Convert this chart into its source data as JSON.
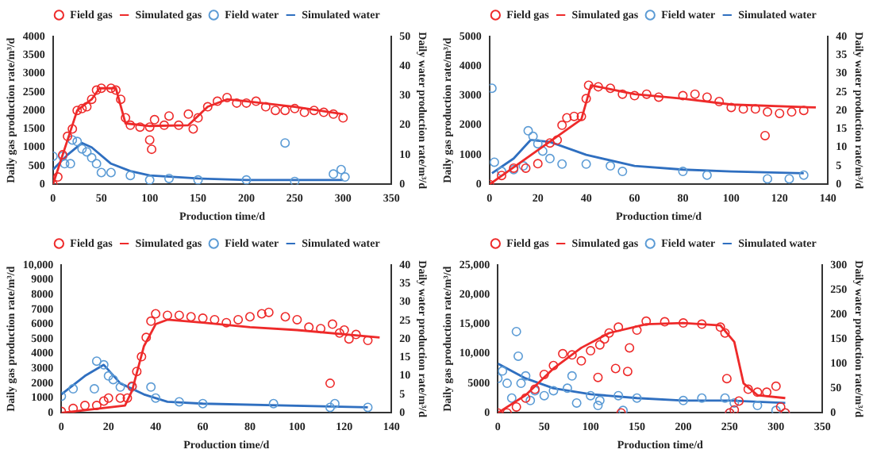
{
  "chart_data": [
    {
      "type": "scatter",
      "xlabel": "Production time/d",
      "ylabel": "Daily gas production rate/m³/d",
      "y2label": "Daily water production rate/m³/d",
      "xlim": [
        0,
        350
      ],
      "xticks": [
        0,
        50,
        100,
        150,
        200,
        250,
        300,
        350
      ],
      "ylim": [
        0,
        4000
      ],
      "yticks": [
        0,
        500,
        1000,
        1500,
        2000,
        2500,
        3000,
        3500,
        4000
      ],
      "y2lim": [
        0,
        50
      ],
      "y2ticks": [
        0,
        10,
        20,
        30,
        40,
        50
      ],
      "grid": false,
      "legend": "top",
      "series": [
        {
          "name": "Field gas",
          "type": "scatter",
          "marker": "circle",
          "color": "#ee2a2a",
          "x": [
            0,
            5,
            10,
            15,
            20,
            25,
            30,
            35,
            40,
            45,
            50,
            60,
            65,
            70,
            75,
            80,
            90,
            100,
            100,
            102,
            105,
            115,
            120,
            130,
            140,
            145,
            150,
            160,
            170,
            180,
            190,
            200,
            210,
            220,
            230,
            240,
            250,
            260,
            270,
            280,
            290,
            300
          ],
          "values": [
            0,
            200,
            800,
            1300,
            1500,
            2000,
            2050,
            2100,
            2300,
            2550,
            2600,
            2600,
            2550,
            2300,
            1800,
            1600,
            1550,
            1550,
            1200,
            950,
            1750,
            1600,
            1850,
            1600,
            1900,
            1500,
            1800,
            2100,
            2250,
            2350,
            2200,
            2200,
            2250,
            2100,
            2000,
            2000,
            2050,
            1950,
            2000,
            1950,
            1900,
            1800
          ]
        },
        {
          "name": "Simulated gas",
          "type": "line",
          "marker": "none",
          "color": "#ee2a2a",
          "x": [
            0,
            20,
            25,
            40,
            48,
            65,
            75,
            100,
            140,
            160,
            180,
            200,
            250,
            300
          ],
          "values": [
            0,
            1600,
            2000,
            2300,
            2600,
            2600,
            1650,
            1580,
            1600,
            2100,
            2300,
            2250,
            2100,
            1900
          ]
        },
        {
          "name": "Field water",
          "type": "scatter",
          "marker": "circle",
          "axis": "y2",
          "color": "#5b9bd5",
          "x": [
            0,
            10,
            12,
            18,
            20,
            25,
            30,
            35,
            40,
            45,
            50,
            60,
            80,
            100,
            120,
            150,
            200,
            240,
            250,
            290,
            298,
            302
          ],
          "values": [
            9.5,
            9.5,
            7,
            7,
            15,
            14.5,
            12,
            11,
            9,
            7,
            4,
            4,
            3,
            1.5,
            2,
            1.5,
            1.5,
            14,
            1,
            3.5,
            5,
            2.5
          ]
        },
        {
          "name": "Simulated water",
          "type": "line",
          "marker": "none",
          "axis": "y2",
          "color": "#2f6fc0",
          "x": [
            0,
            15,
            30,
            40,
            60,
            80,
            100,
            150,
            200,
            300
          ],
          "values": [
            5,
            10,
            14,
            12.5,
            7,
            4.5,
            3,
            2,
            1.5,
            1.5
          ]
        }
      ]
    },
    {
      "type": "scatter",
      "xlabel": "Production time/d",
      "ylabel": "Daily gas production rate/m³/d",
      "y2label": "Daily water production rate/m³/d",
      "xlim": [
        0,
        140
      ],
      "xticks": [
        0,
        20,
        40,
        60,
        80,
        100,
        120,
        140
      ],
      "ylim": [
        0,
        5000
      ],
      "yticks": [
        0,
        1000,
        2000,
        3000,
        4000,
        5000
      ],
      "y2lim": [
        0,
        40
      ],
      "y2ticks": [
        0,
        5,
        10,
        15,
        20,
        25,
        30,
        35,
        40
      ],
      "grid": false,
      "legend": "top",
      "series": [
        {
          "name": "Field gas",
          "type": "scatter",
          "marker": "circle",
          "color": "#ee2a2a",
          "x": [
            0,
            5,
            10,
            15,
            20,
            25,
            28,
            30,
            32,
            35,
            38,
            40,
            41,
            45,
            50,
            55,
            60,
            65,
            70,
            80,
            85,
            90,
            95,
            100,
            105,
            110,
            114,
            115,
            120,
            125,
            130
          ],
          "values": [
            0,
            300,
            550,
            550,
            700,
            1400,
            1500,
            2000,
            2250,
            2300,
            2300,
            2900,
            3350,
            3300,
            3250,
            3050,
            3000,
            3050,
            2950,
            3000,
            3050,
            2950,
            2800,
            2600,
            2550,
            2550,
            1650,
            2450,
            2400,
            2450,
            2500
          ]
        },
        {
          "name": "Simulated gas",
          "type": "line",
          "marker": "none",
          "color": "#ee2a2a",
          "x": [
            0,
            38,
            42,
            60,
            80,
            100,
            135
          ],
          "values": [
            0,
            2200,
            3350,
            3050,
            2900,
            2700,
            2600
          ]
        },
        {
          "name": "Field water",
          "type": "scatter",
          "marker": "circle",
          "axis": "y2",
          "color": "#5b9bd5",
          "x": [
            1,
            2,
            5,
            10,
            14,
            16,
            18,
            20,
            22,
            25,
            30,
            40,
            50,
            55,
            80,
            90,
            115,
            124,
            130
          ],
          "values": [
            26,
            6,
            3.5,
            4,
            5,
            14.5,
            13,
            11,
            9,
            7,
            5.5,
            5.5,
            5,
            3.5,
            3.5,
            2.5,
            1.5,
            1.5,
            2.5
          ]
        },
        {
          "name": "Simulated water",
          "type": "line",
          "marker": "none",
          "axis": "y2",
          "color": "#2f6fc0",
          "x": [
            1,
            10,
            17,
            25,
            40,
            60,
            80,
            100,
            130
          ],
          "values": [
            3,
            7,
            12,
            11.5,
            8,
            5,
            4,
            3.5,
            3
          ]
        }
      ]
    },
    {
      "type": "scatter",
      "xlabel": "Production time/d",
      "ylabel": "Daily gas production rate/m³/d",
      "y2label": "Daily water production rate/m³/d",
      "xlim": [
        0,
        140
      ],
      "xticks": [
        0,
        20,
        40,
        60,
        80,
        100,
        120,
        140
      ],
      "ylim": [
        0,
        10000
      ],
      "yticks": [
        0,
        1000,
        2000,
        3000,
        4000,
        5000,
        6000,
        7000,
        8000,
        9000,
        {
          "value": 10000,
          "label": "10,000"
        }
      ],
      "y2lim": [
        0,
        40
      ],
      "y2ticks": [
        0,
        5,
        10,
        15,
        20,
        25,
        30,
        35,
        40
      ],
      "grid": false,
      "legend": "top",
      "series": [
        {
          "name": "Field gas",
          "type": "scatter",
          "marker": "circle",
          "color": "#ee2a2a",
          "x": [
            0,
            5,
            10,
            15,
            18,
            20,
            25,
            28,
            30,
            32,
            34,
            36,
            38,
            40,
            45,
            50,
            55,
            60,
            65,
            70,
            75,
            80,
            85,
            88,
            95,
            100,
            105,
            110,
            114,
            115,
            118,
            120,
            122,
            125,
            130
          ],
          "values": [
            100,
            300,
            500,
            500,
            800,
            1000,
            1000,
            1000,
            1800,
            2800,
            3800,
            5100,
            6200,
            6700,
            6600,
            6600,
            6500,
            6400,
            6300,
            6100,
            6300,
            6500,
            6700,
            6800,
            6500,
            6300,
            5800,
            5700,
            2000,
            6000,
            5400,
            5600,
            5000,
            5300,
            4900
          ]
        },
        {
          "name": "Simulated gas",
          "type": "line",
          "marker": "none",
          "color": "#ee2a2a",
          "x": [
            0,
            27,
            30,
            35,
            40,
            45,
            60,
            80,
            100,
            135
          ],
          "values": [
            0,
            500,
            1500,
            4500,
            6000,
            6300,
            6100,
            5800,
            5600,
            5100
          ]
        },
        {
          "name": "Field water",
          "type": "scatter",
          "marker": "circle",
          "axis": "y2",
          "color": "#5b9bd5",
          "x": [
            0,
            5,
            14,
            15,
            18,
            20,
            22,
            25,
            30,
            38,
            40,
            50,
            60,
            90,
            114,
            116,
            130
          ],
          "values": [
            4.5,
            6.5,
            6.5,
            14,
            13,
            10,
            9,
            7,
            7,
            7,
            4,
            3,
            2.5,
            2.5,
            1.5,
            2.5,
            1.5
          ]
        },
        {
          "name": "Simulated water",
          "type": "line",
          "marker": "none",
          "axis": "y2",
          "color": "#2f6fc0",
          "x": [
            0,
            10,
            18,
            25,
            35,
            45,
            60,
            130
          ],
          "values": [
            5,
            10,
            13,
            8,
            5,
            3,
            2.5,
            1.5
          ]
        }
      ]
    },
    {
      "type": "scatter",
      "xlabel": "Production time/d",
      "ylabel": "Daily gas production rate/m³/d",
      "y2label": "Daily water production rate/m³/d",
      "xlim": [
        0,
        350
      ],
      "xticks": [
        0,
        50,
        100,
        150,
        200,
        250,
        300,
        350
      ],
      "ylim": [
        0,
        25000
      ],
      "yticks": [
        0,
        5000,
        {
          "value": 10000,
          "label": "10,000"
        },
        {
          "value": 15000,
          "label": "15,000"
        },
        {
          "value": 20000,
          "label": "20,000"
        },
        {
          "value": 25000,
          "label": "25,000"
        }
      ],
      "y2lim": [
        0,
        300
      ],
      "y2ticks": [
        0,
        50,
        100,
        150,
        200,
        250,
        300
      ],
      "grid": false,
      "legend": "top",
      "series": [
        {
          "name": "Field gas",
          "type": "scatter",
          "marker": "circle",
          "color": "#ee2a2a",
          "x": [
            0,
            10,
            20,
            30,
            40,
            50,
            60,
            70,
            80,
            90,
            100,
            108,
            110,
            115,
            120,
            127,
            130,
            133,
            140,
            142,
            150,
            160,
            180,
            200,
            220,
            240,
            245,
            247,
            250,
            255,
            260,
            270,
            280,
            290,
            300,
            305,
            310
          ],
          "values": [
            0,
            0,
            1000,
            2500,
            4000,
            6500,
            8000,
            10000,
            9800,
            8800,
            10500,
            6000,
            11500,
            12500,
            13500,
            7500,
            14500,
            0,
            7000,
            11000,
            14000,
            15500,
            15400,
            15200,
            15000,
            14500,
            13500,
            5800,
            0,
            500,
            2000,
            4000,
            3500,
            3500,
            4500,
            1000,
            0
          ]
        },
        {
          "name": "Simulated gas",
          "type": "line",
          "marker": "none",
          "color": "#ee2a2a",
          "x": [
            0,
            30,
            60,
            90,
            120,
            160,
            200,
            240,
            255,
            265,
            280,
            310
          ],
          "values": [
            0,
            3000,
            7500,
            11000,
            13500,
            15000,
            15200,
            14800,
            12000,
            5000,
            3000,
            2500
          ]
        },
        {
          "name": "Field water",
          "type": "scatter",
          "marker": "circle",
          "axis": "y2",
          "color": "#5b9bd5",
          "x": [
            0,
            5,
            10,
            15,
            20,
            22,
            25,
            30,
            35,
            40,
            50,
            60,
            75,
            80,
            85,
            100,
            108,
            110,
            130,
            135,
            150,
            200,
            220,
            245,
            250,
            255,
            280,
            300,
            310
          ],
          "values": [
            70,
            85,
            60,
            30,
            165,
            115,
            60,
            75,
            25,
            45,
            35,
            45,
            50,
            75,
            20,
            35,
            15,
            25,
            35,
            5,
            30,
            25,
            30,
            30,
            0,
            20,
            15,
            5,
            0
          ]
        },
        {
          "name": "Simulated water",
          "type": "line",
          "marker": "none",
          "axis": "y2",
          "color": "#2f6fc0",
          "x": [
            0,
            30,
            60,
            100,
            150,
            200,
            250,
            310
          ],
          "values": [
            100,
            70,
            50,
            38,
            30,
            25,
            25,
            20
          ]
        }
      ]
    }
  ]
}
